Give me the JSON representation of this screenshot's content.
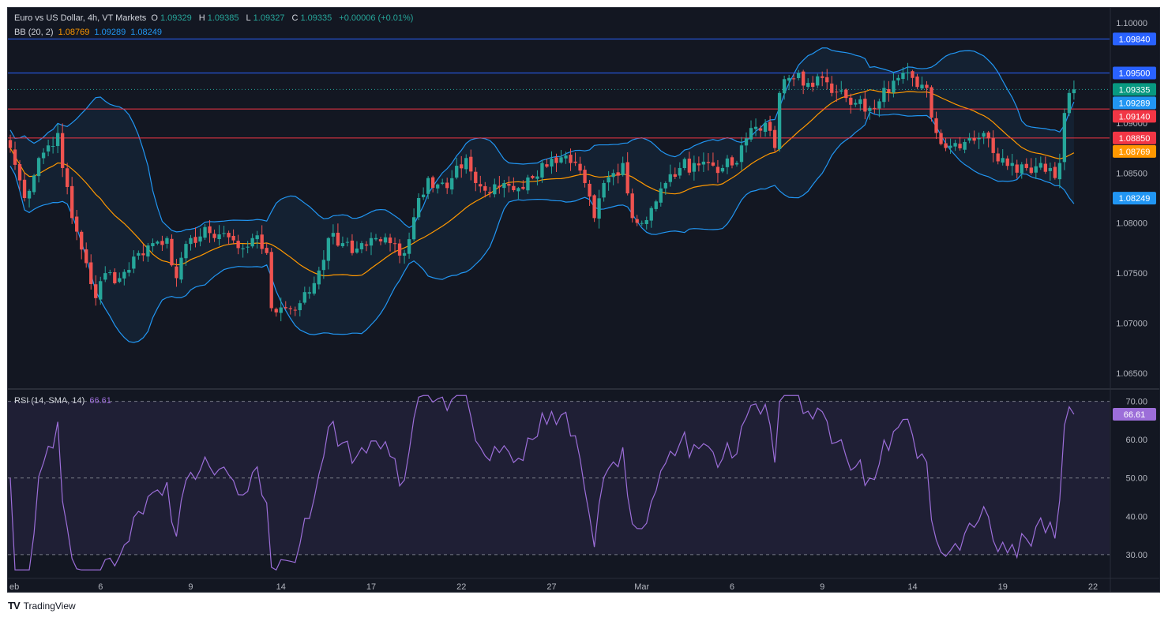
{
  "header": {
    "symbol": "Euro vs US Dollar, 4h, VT Markets",
    "ohlc": [
      {
        "label": "O",
        "value": "1.09329"
      },
      {
        "label": "H",
        "value": "1.09385"
      },
      {
        "label": "L",
        "value": "1.09327"
      },
      {
        "label": "C",
        "value": "1.09335"
      }
    ],
    "change": "+0.00006 (+0.01%)"
  },
  "bb_legend": {
    "label": "BB (20, 2)",
    "basis": "1.08769",
    "upper": "1.09289",
    "lower": "1.08249"
  },
  "rsi_legend": {
    "label": "RSI (14, SMA, 14)",
    "value": "66.61"
  },
  "branding": {
    "logo": "TV",
    "name": "TradingView"
  },
  "colors": {
    "up": "#26a69a",
    "down": "#ef5350",
    "basis": "#ff9800",
    "band": "#2196f3",
    "rsi": "#9c6ed9",
    "line_blue": "#2962ff",
    "line_red": "#f23645"
  },
  "chart_data": [
    {
      "type": "candlestick",
      "title": "Euro vs US Dollar, 4h, VT Markets",
      "ylim": [
        1.0635,
        1.1015
      ],
      "y_ticks": [
        "1.10000",
        "1.09500",
        "1.09000",
        "1.08500",
        "1.08000",
        "1.07500",
        "1.07000",
        "1.06500"
      ],
      "x_ticks": [
        "eb",
        "6",
        "9",
        "14",
        "17",
        "22",
        "27",
        "Mar",
        "6",
        "9",
        "14",
        "19",
        "22"
      ],
      "x_ticks_pos": [
        0,
        19,
        38,
        57,
        76,
        95,
        114,
        133,
        152,
        171,
        190,
        209,
        228
      ],
      "bar_count": 232,
      "anchors": [
        [
          0,
          1.0875
        ],
        [
          3,
          1.0825
        ],
        [
          6,
          1.0865
        ],
        [
          10,
          1.089
        ],
        [
          11,
          1.0855
        ],
        [
          13,
          1.0805
        ],
        [
          16,
          1.076
        ],
        [
          18,
          1.0725
        ],
        [
          20,
          1.075
        ],
        [
          23,
          1.0745
        ],
        [
          27,
          1.077
        ],
        [
          30,
          1.078
        ],
        [
          33,
          1.0785
        ],
        [
          35,
          1.0745
        ],
        [
          38,
          1.0785
        ],
        [
          42,
          1.079
        ],
        [
          45,
          1.079
        ],
        [
          48,
          1.0775
        ],
        [
          51,
          1.0785
        ],
        [
          54,
          1.077
        ],
        [
          55,
          1.0715
        ],
        [
          58,
          1.0715
        ],
        [
          61,
          1.072
        ],
        [
          64,
          1.074
        ],
        [
          67,
          1.0785
        ],
        [
          70,
          1.078
        ],
        [
          72,
          1.077
        ],
        [
          74,
          1.078
        ],
        [
          77,
          1.0785
        ],
        [
          80,
          1.078
        ],
        [
          83,
          1.077
        ],
        [
          86,
          1.0825
        ],
        [
          88,
          1.0845
        ],
        [
          92,
          1.0835
        ],
        [
          96,
          1.0865
        ],
        [
          98,
          1.084
        ],
        [
          101,
          1.083
        ],
        [
          104,
          1.084
        ],
        [
          107,
          1.0835
        ],
        [
          110,
          1.0845
        ],
        [
          112,
          1.086
        ],
        [
          115,
          1.086
        ],
        [
          118,
          1.086
        ],
        [
          121,
          1.084
        ],
        [
          123,
          1.0805
        ],
        [
          125,
          1.084
        ],
        [
          127,
          1.085
        ],
        [
          129,
          1.086
        ],
        [
          131,
          1.0805
        ],
        [
          133,
          1.08
        ],
        [
          135,
          1.0815
        ],
        [
          138,
          1.084
        ],
        [
          141,
          1.0855
        ],
        [
          144,
          1.086
        ],
        [
          147,
          1.086
        ],
        [
          150,
          1.0855
        ],
        [
          153,
          1.086
        ],
        [
          156,
          1.0895
        ],
        [
          159,
          1.09
        ],
        [
          161,
          1.0875
        ],
        [
          162,
          1.093
        ],
        [
          164,
          1.0945
        ],
        [
          166,
          1.095
        ],
        [
          168,
          1.094
        ],
        [
          171,
          1.0945
        ],
        [
          173,
          1.093
        ],
        [
          176,
          1.0925
        ],
        [
          178,
          1.092
        ],
        [
          181,
          1.0915
        ],
        [
          184,
          1.0935
        ],
        [
          187,
          1.0945
        ],
        [
          190,
          1.0945
        ],
        [
          193,
          1.0935
        ],
        [
          195,
          1.089
        ],
        [
          197,
          1.0875
        ],
        [
          199,
          1.088
        ],
        [
          202,
          1.0885
        ],
        [
          205,
          1.089
        ],
        [
          207,
          1.087
        ],
        [
          209,
          1.0865
        ],
        [
          211,
          1.086
        ],
        [
          214,
          1.0855
        ],
        [
          217,
          1.086
        ],
        [
          219,
          1.0855
        ],
        [
          220,
          1.0845
        ],
        [
          221,
          1.086
        ],
        [
          222,
          1.091
        ],
        [
          223,
          1.093
        ],
        [
          224,
          1.09335
        ]
      ],
      "bollinger_bands": {
        "period": 20,
        "multiplier": 2,
        "basis": 1.08769,
        "upper": 1.09289,
        "lower": 1.08249
      },
      "price_labels": [
        {
          "text": "1.09840",
          "value": 1.0984,
          "color": "#2962ff"
        },
        {
          "text": "1.09500",
          "value": 1.095,
          "color": "#2962ff"
        },
        {
          "text": "1.09335",
          "value": 1.09335,
          "color": "#089981"
        },
        {
          "text": "1.09289",
          "value": 1.09289,
          "color": "#2196f3"
        },
        {
          "text": "1.09140",
          "value": 1.0914,
          "color": "#f23645"
        },
        {
          "text": "1.08850",
          "value": 1.0885,
          "color": "#f23645"
        },
        {
          "text": "1.08769",
          "value": 1.08769,
          "color": "#ff9800"
        },
        {
          "text": "1.08249",
          "value": 1.08249,
          "color": "#2196f3"
        }
      ],
      "horizontal_lines": [
        {
          "value": 1.0984,
          "color": "#2962ff"
        },
        {
          "value": 1.095,
          "color": "#2962ff"
        },
        {
          "value": 1.0914,
          "color": "#f23645"
        },
        {
          "value": 1.0885,
          "color": "#f23645"
        }
      ],
      "last_price": 1.09335
    },
    {
      "type": "line",
      "title": "RSI (14, SMA, 14)",
      "ylim": [
        24,
        73
      ],
      "y_ticks": [
        "70.00",
        "60.00",
        "50.00",
        "40.00",
        "30.00"
      ],
      "levels": [
        70,
        50,
        30
      ],
      "value_label": "66.61",
      "value": 66.61
    }
  ]
}
